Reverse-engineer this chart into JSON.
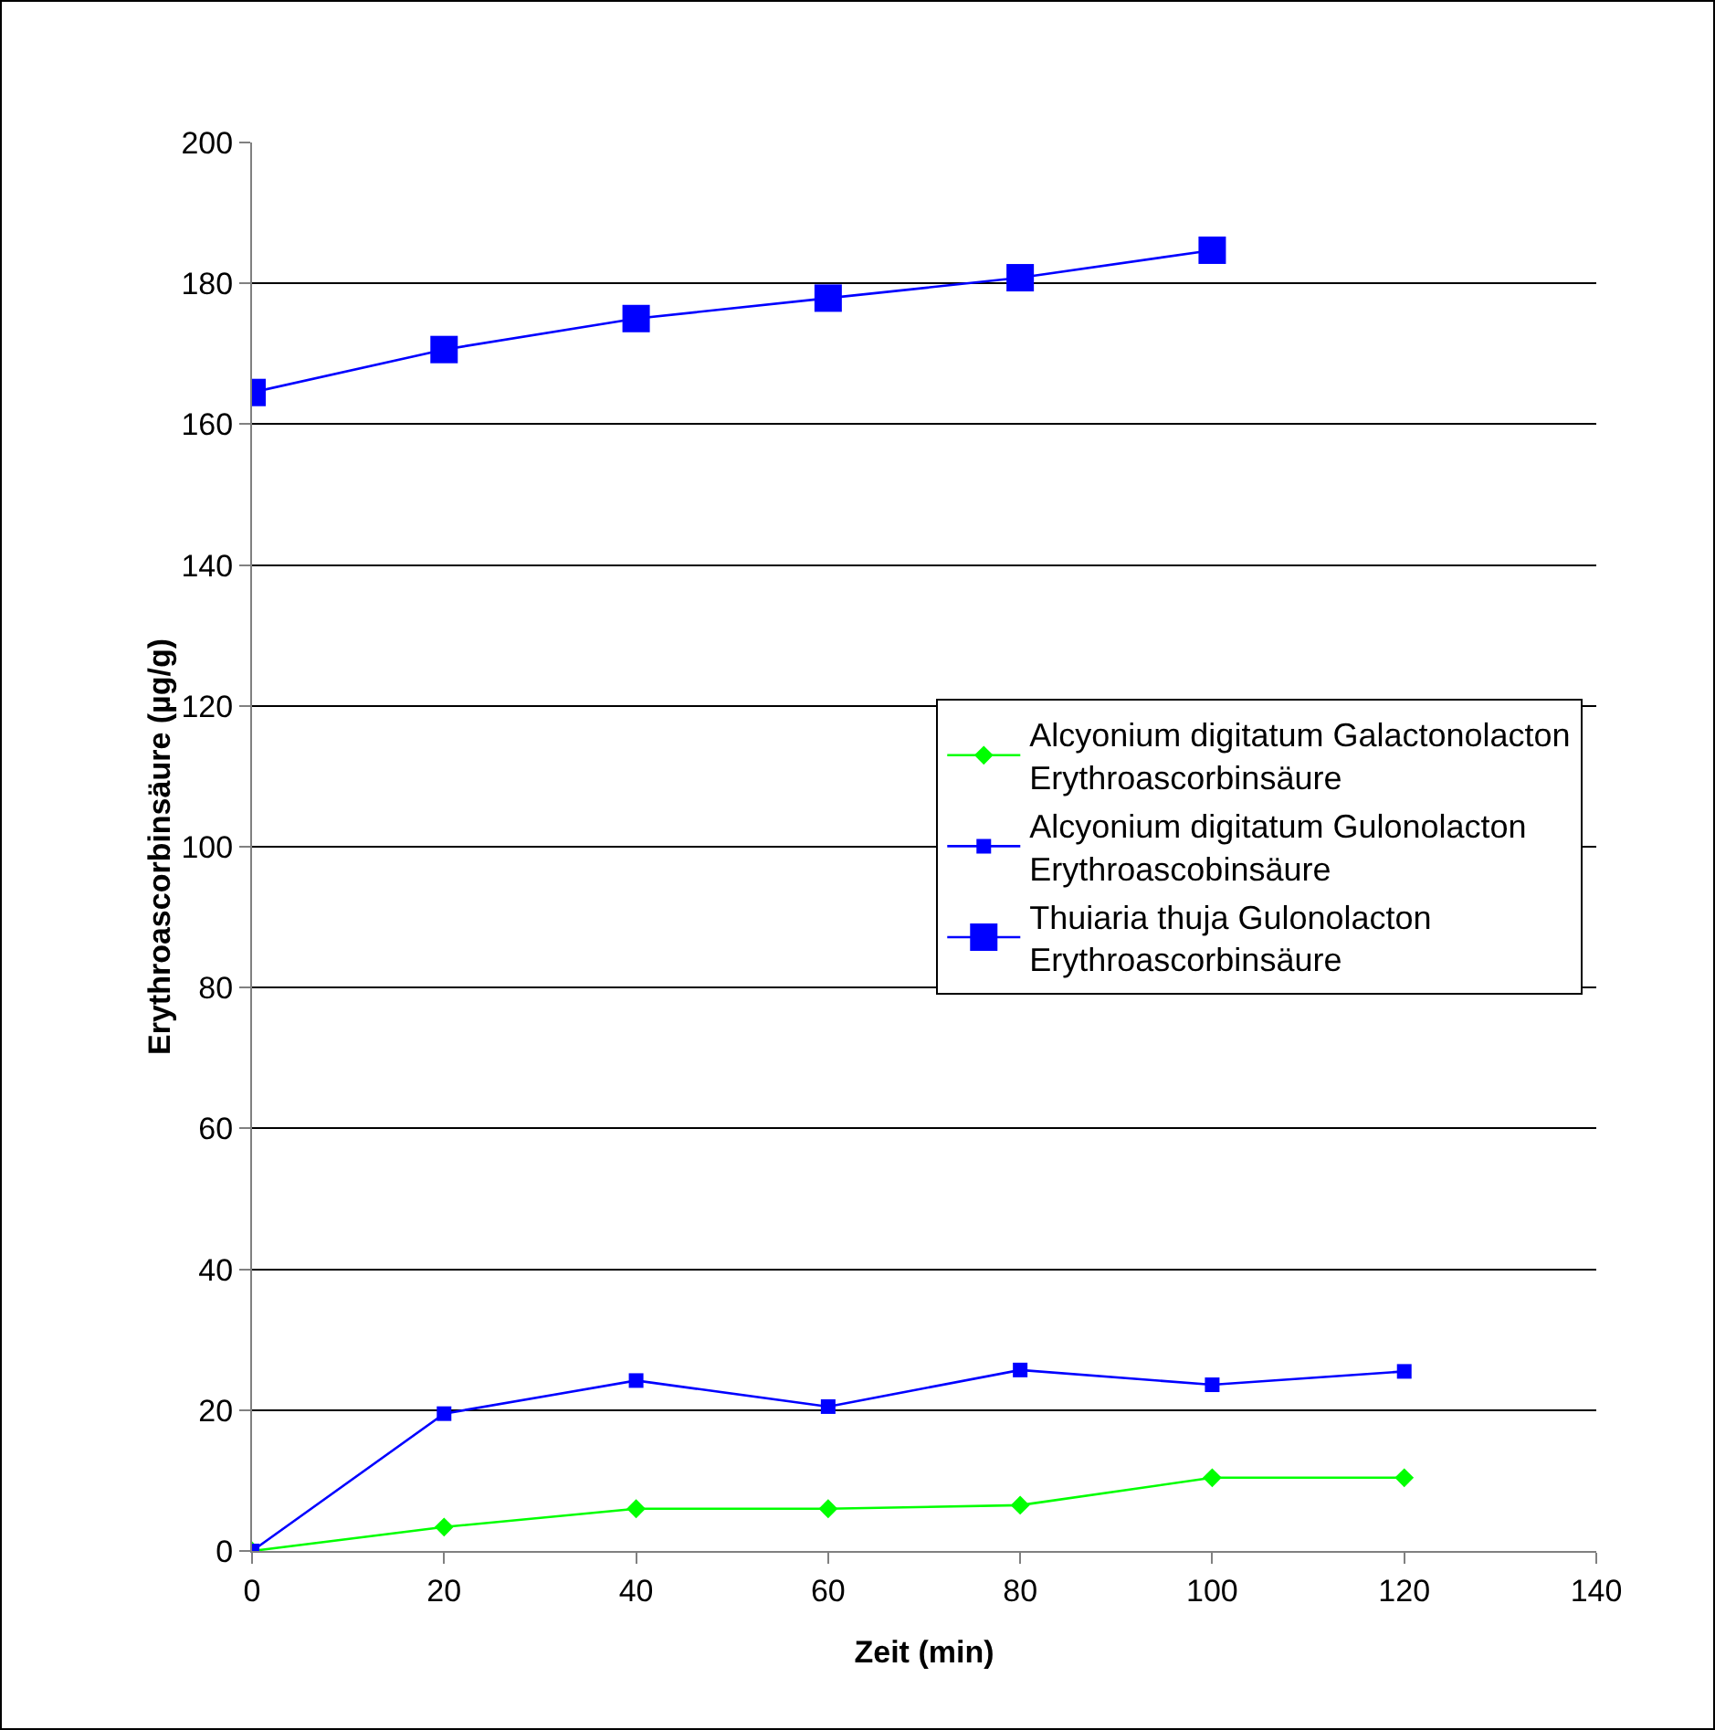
{
  "chart_data": {
    "type": "line",
    "xlabel": "Zeit (min)",
    "ylabel": "Erythroascorbinsäure (µg/g)",
    "x": [
      0,
      20,
      40,
      60,
      80,
      100,
      120
    ],
    "series": [
      {
        "name": "Alcyonium digitatum Galactonolacton Erythroascorbinsäure",
        "color": "#00ff00",
        "marker": "diamond",
        "values": [
          0,
          3.4,
          6,
          6,
          6.5,
          10.4,
          10.4
        ]
      },
      {
        "name": "Alcyonium digitatum Gulonolacton Erythroascobinsäure",
        "color": "#0000ff",
        "marker": "square",
        "values": [
          0,
          19.5,
          24.2,
          20.5,
          25.7,
          23.6,
          25.5
        ]
      },
      {
        "name": "Thuiaria thuja Gulonolacton Erythroascorbinsäure",
        "color": "#0000ff",
        "marker": "square",
        "x": [
          0,
          20,
          40,
          60,
          80,
          100
        ],
        "values": [
          164.5,
          170.6,
          175,
          177.9,
          180.8,
          184.7
        ]
      }
    ],
    "xlim": [
      0,
      140
    ],
    "xticks": [
      0,
      20,
      40,
      60,
      80,
      100,
      120,
      140
    ],
    "ylim": [
      0,
      200
    ],
    "yticks": [
      0,
      20,
      40,
      60,
      80,
      100,
      120,
      140,
      160,
      180,
      200
    ],
    "grid": "y",
    "legend": "right",
    "line_style": "solid"
  }
}
